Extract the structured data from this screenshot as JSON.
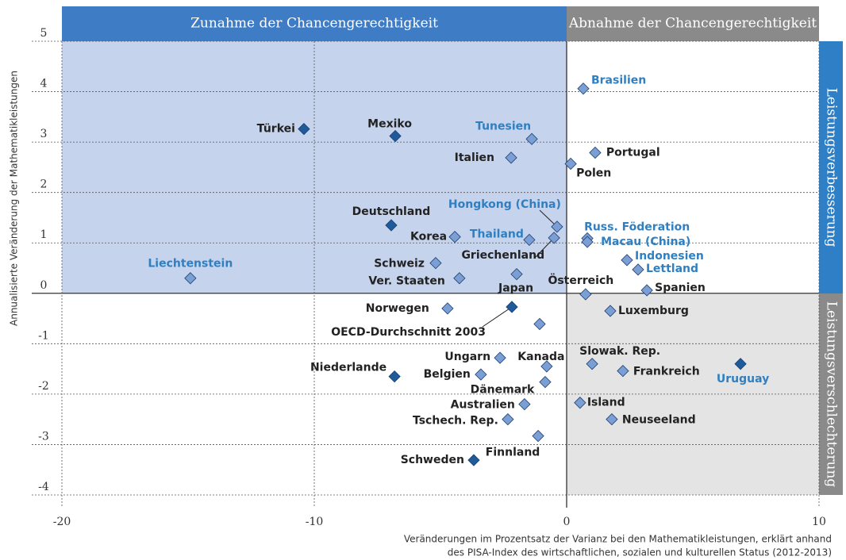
{
  "header_left": "Zunahme der Chancengerechtigkeit",
  "header_right": "Abnahme der Chancengerechtigkeit",
  "side_top": "Leistungsverbesserung",
  "side_bottom": "Leistungsverschlechterung",
  "chart_data": {
    "type": "scatter",
    "ylabel": "Annualisierte Veränderung der Mathematikleistungen",
    "xlabel": [
      "Veränderungen im Prozentsatz der Varianz bei den Mathematikleistungen, erklärt anhand",
      "des PISA-Index des wirtschaftlichen, sozialen und kulturellen Status (2012-2013)"
    ],
    "xlim": [
      -20,
      10
    ],
    "ylim": [
      -4,
      5
    ],
    "xticks": [
      -20,
      -10,
      0,
      10
    ],
    "yticks": [
      -4,
      -3,
      -2,
      -1,
      0,
      1,
      2,
      3,
      4,
      5
    ],
    "grid": true,
    "marker_colors": {
      "dark": "#1f5a9a",
      "light": "#7b9fd4"
    },
    "label_colors": {
      "dark": "#222222",
      "blue": "#2f7fc1"
    },
    "points": [
      {
        "label": "Brasilien",
        "x": 0.66,
        "y": 4.06,
        "marker": "light",
        "label_color": "blue"
      },
      {
        "label": "Türkei",
        "x": -10.41,
        "y": 3.26,
        "marker": "dark",
        "label_color": "dark"
      },
      {
        "label": "Mexiko",
        "x": -6.79,
        "y": 3.12,
        "marker": "dark",
        "label_color": "dark"
      },
      {
        "label": "Tunesien",
        "x": -1.38,
        "y": 3.06,
        "marker": "light",
        "label_color": "blue"
      },
      {
        "label": "Portugal",
        "x": 1.13,
        "y": 2.79,
        "marker": "light",
        "label_color": "dark"
      },
      {
        "label": "Italien",
        "x": -2.2,
        "y": 2.69,
        "marker": "light",
        "label_color": "dark"
      },
      {
        "label": "Polen",
        "x": 0.16,
        "y": 2.57,
        "marker": "light",
        "label_color": "dark"
      },
      {
        "label": "Deutschland",
        "x": -6.95,
        "y": 1.35,
        "marker": "dark",
        "label_color": "dark"
      },
      {
        "label": "Hongkong (China)",
        "x": -0.38,
        "y": 1.32,
        "marker": "light",
        "label_color": "blue"
      },
      {
        "label": "Russ. Föderation",
        "x": 0.82,
        "y": 1.09,
        "marker": "light",
        "label_color": "blue"
      },
      {
        "label": "Macau (China)",
        "x": 0.82,
        "y": 1.02,
        "marker": "light",
        "label_color": "blue"
      },
      {
        "label": "Korea",
        "x": -4.43,
        "y": 1.12,
        "marker": "light",
        "label_color": "dark"
      },
      {
        "label": "Thailand",
        "x": -1.48,
        "y": 1.06,
        "marker": "light",
        "label_color": "blue"
      },
      {
        "label": "Griechenland",
        "x": -0.5,
        "y": 1.1,
        "marker": "light",
        "label_color": "dark"
      },
      {
        "label": "Indonesien",
        "x": 2.39,
        "y": 0.66,
        "marker": "light",
        "label_color": "blue"
      },
      {
        "label": "Schweiz",
        "x": -5.19,
        "y": 0.6,
        "marker": "light",
        "label_color": "dark"
      },
      {
        "label": "Lettland",
        "x": 2.83,
        "y": 0.47,
        "marker": "light",
        "label_color": "blue"
      },
      {
        "label": "Liechtenstein",
        "x": -14.91,
        "y": 0.3,
        "marker": "light",
        "label_color": "blue"
      },
      {
        "label": "Ver. Staaten",
        "x": -4.25,
        "y": 0.3,
        "marker": "light",
        "label_color": "dark"
      },
      {
        "label": "Japan",
        "x": -1.98,
        "y": 0.38,
        "marker": "light",
        "label_color": "dark"
      },
      {
        "label": "Spanien",
        "x": 3.18,
        "y": 0.06,
        "marker": "light",
        "label_color": "dark"
      },
      {
        "label": "Österreich",
        "x": 0.75,
        "y": -0.02,
        "marker": "light",
        "label_color": "dark"
      },
      {
        "label": "Norwegen",
        "x": -4.72,
        "y": -0.3,
        "marker": "light",
        "label_color": "dark"
      },
      {
        "label": "OECD-Durchschnitt 2003",
        "x": -2.17,
        "y": -0.27,
        "marker": "dark",
        "label_color": "dark"
      },
      {
        "label": "Luxemburg",
        "x": 1.73,
        "y": -0.35,
        "marker": "light",
        "label_color": "dark"
      },
      {
        "label": null,
        "x": -1.07,
        "y": -0.61,
        "marker": "light",
        "label_color": "dark"
      },
      {
        "label": "Ungarn",
        "x": -2.64,
        "y": -1.28,
        "marker": "light",
        "label_color": "dark"
      },
      {
        "label": "Kanada",
        "x": -0.79,
        "y": -1.45,
        "marker": "light",
        "label_color": "dark"
      },
      {
        "label": "Slowak. Rep.",
        "x": 1.01,
        "y": -1.4,
        "marker": "light",
        "label_color": "dark"
      },
      {
        "label": "Frankreich",
        "x": 2.23,
        "y": -1.54,
        "marker": "light",
        "label_color": "dark"
      },
      {
        "label": "Uruguay",
        "x": 6.89,
        "y": -1.4,
        "marker": "dark",
        "label_color": "blue"
      },
      {
        "label": "Niederlande",
        "x": -6.82,
        "y": -1.65,
        "marker": "dark",
        "label_color": "dark"
      },
      {
        "label": "Belgien",
        "x": -3.4,
        "y": -1.61,
        "marker": "light",
        "label_color": "dark"
      },
      {
        "label": "Dänemark",
        "x": -0.85,
        "y": -1.76,
        "marker": "light",
        "label_color": "dark"
      },
      {
        "label": "Australien",
        "x": -1.67,
        "y": -2.2,
        "marker": "light",
        "label_color": "dark"
      },
      {
        "label": "Island",
        "x": 0.53,
        "y": -2.17,
        "marker": "light",
        "label_color": "dark"
      },
      {
        "label": "Tschech. Rep.",
        "x": -2.33,
        "y": -2.5,
        "marker": "light",
        "label_color": "dark"
      },
      {
        "label": "Neuseeland",
        "x": 1.79,
        "y": -2.5,
        "marker": "light",
        "label_color": "dark"
      },
      {
        "label": "Finnland",
        "x": -1.13,
        "y": -2.83,
        "marker": "light",
        "label_color": "dark"
      },
      {
        "label": "Schweden",
        "x": -3.68,
        "y": -3.31,
        "marker": "dark",
        "label_color": "dark"
      }
    ]
  }
}
